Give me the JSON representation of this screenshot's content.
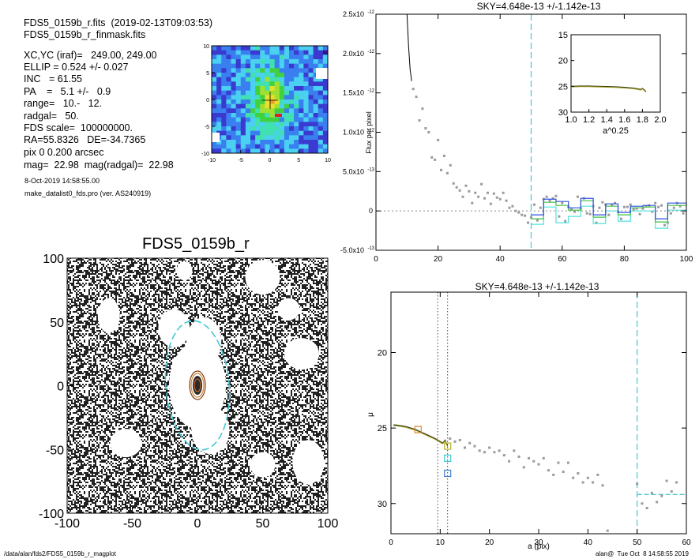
{
  "header": {
    "filename_line": "FDS5_0159b_r.fits  (2019-02-13T09:03:53)",
    "mask_line": "FDS5_0159b_r_finmask.fits",
    "params": [
      "XC,YC (iraf)=   249.00, 249.00",
      "ELLIP = 0.524 +/- 0.027",
      "INC   = 61.55",
      "PA    =   5.1 +/-   0.9",
      "range=   10.-   12.",
      "radgal=   50.",
      "FDS scale=  100000000.",
      "RA=55.8326   DE=-34.7365",
      "pix 0 0.200 arcsec",
      "mag=  22.98  mag(radgal)=  22.98"
    ],
    "date_line": "8-Oct-2019 14:58:55.00",
    "program_line": "make_datalist0_fds.pro (ver. AS240919)"
  },
  "footer": {
    "left": "/data/alan/fds2/FDS5_0159b_r_magplot",
    "right": "alan@  Tue Oct  8 14:58:55 2019"
  },
  "chart_data": [
    {
      "type": "heatmap",
      "name": "galaxy-zoom",
      "xlim": [
        -10,
        10
      ],
      "ylim": [
        -10,
        10
      ],
      "xticks": [
        "-10",
        "-5",
        "0",
        "5",
        "10"
      ],
      "yticks": [
        "-10",
        "-5",
        "0",
        "5",
        "10"
      ]
    },
    {
      "type": "heatmap",
      "name": "galaxy-image",
      "title": "FDS5_0159b_r",
      "xlim": [
        -100,
        100
      ],
      "ylim": [
        -100,
        100
      ],
      "xticks": [
        "-100",
        "-50",
        "0",
        "50",
        "100"
      ],
      "yticks": [
        "-100",
        "-50",
        "0",
        "50",
        "100"
      ],
      "ellipse": {
        "semi_major": 50,
        "ellip": 0.524,
        "pa": 5.1
      },
      "masked_regions": [
        {
          "x": 5,
          "y": 35
        },
        {
          "x": 10,
          "y": -35
        },
        {
          "x": 85,
          "y": -60
        },
        {
          "x": 80,
          "y": 25
        },
        {
          "x": 50,
          "y": 85
        },
        {
          "x": -18,
          "y": 45
        },
        {
          "x": -68,
          "y": 55
        },
        {
          "x": -55,
          "y": -45
        },
        {
          "x": 50,
          "y": -62
        },
        {
          "x": -10,
          "y": 90
        },
        {
          "x": 70,
          "y": 60
        }
      ]
    },
    {
      "type": "scatter",
      "name": "flux-profile",
      "title": "SKY=4.648e-13 +/-1.142e-13",
      "xlabel": "",
      "ylabel": "Flux per pixel",
      "xlim": [
        0,
        100
      ],
      "ylim": [
        -5e-13,
        2.5e-12
      ],
      "xticks": [
        "0",
        "20",
        "40",
        "60",
        "80",
        "100"
      ],
      "yticks": [
        {
          "v": -5e-13,
          "m": "-5.0",
          "e": "-13"
        },
        {
          "v": 0,
          "m": "0",
          "e": ""
        },
        {
          "v": 5e-13,
          "m": "5.0",
          "e": "-13"
        },
        {
          "v": 1e-12,
          "m": "1.0",
          "e": "-12"
        },
        {
          "v": 1.5e-12,
          "m": "1.5",
          "e": "-12"
        },
        {
          "v": 2e-12,
          "m": "2.0",
          "e": "-12"
        },
        {
          "v": 2.5e-12,
          "m": "2.5",
          "e": "-12"
        }
      ],
      "sky_radius": 50,
      "profile_line": [
        [
          10,
          2.5e-12
        ],
        [
          10.5,
          2.1e-12
        ],
        [
          11,
          1.8e-12
        ],
        [
          11.5,
          1.65e-12
        ]
      ],
      "points": [
        [
          12,
          1.55e-12
        ],
        [
          13,
          1.45e-12
        ],
        [
          14,
          1.15e-12
        ],
        [
          15,
          1.3e-12
        ],
        [
          16,
          1.05e-12
        ],
        [
          17,
          1e-12
        ],
        [
          18,
          6.8e-13
        ],
        [
          19,
          6.5e-13
        ],
        [
          20,
          9e-13
        ],
        [
          21,
          5.2e-13
        ],
        [
          22,
          7e-13
        ],
        [
          23,
          4.8e-13
        ],
        [
          24,
          5.8e-13
        ],
        [
          25,
          3.5e-13
        ],
        [
          26,
          3e-13
        ],
        [
          27,
          2.6e-13
        ],
        [
          28,
          1.8e-13
        ],
        [
          29,
          3.2e-13
        ],
        [
          30,
          2.5e-13
        ],
        [
          31,
          1e-13
        ],
        [
          32,
          2.3e-13
        ],
        [
          33,
          1.8e-13
        ],
        [
          34,
          3.4e-13
        ],
        [
          35,
          1.6e-13
        ],
        [
          36,
          2.3e-13
        ],
        [
          37,
          9e-14
        ],
        [
          38,
          2.2e-13
        ],
        [
          39,
          1.7e-13
        ],
        [
          40,
          1.5e-13
        ],
        [
          41,
          2.3e-13
        ],
        [
          42,
          1.3e-13
        ],
        [
          43,
          4e-14
        ],
        [
          44,
          6e-14
        ],
        [
          45,
          0
        ],
        [
          46,
          -2e-14
        ],
        [
          47,
          -5e-14
        ],
        [
          48,
          -6e-14
        ],
        [
          49,
          -1.5e-13
        ],
        [
          50,
          -8e-14
        ],
        [
          51,
          8e-14
        ],
        [
          52,
          -1.2e-13
        ],
        [
          53,
          4e-14
        ],
        [
          54,
          1.5e-13
        ],
        [
          55,
          1.8e-13
        ],
        [
          56,
          1.3e-13
        ],
        [
          57,
          1.6e-13
        ],
        [
          58,
          1.9e-13
        ],
        [
          59,
          -7e-14
        ],
        [
          60,
          1e-13
        ],
        [
          61,
          -1.3e-13
        ],
        [
          62,
          5e-14
        ],
        [
          63,
          2e-14
        ],
        [
          64,
          -1e-14
        ],
        [
          65,
          1.8e-13
        ],
        [
          66,
          3e-14
        ],
        [
          67,
          1.6e-13
        ],
        [
          68,
          -3e-14
        ],
        [
          69,
          -4e-14
        ],
        [
          70,
          6e-14
        ],
        [
          71,
          -1.5e-13
        ],
        [
          72,
          4e-14
        ],
        [
          73,
          1.1e-13
        ],
        [
          74,
          8e-14
        ],
        [
          75,
          -5e-14
        ],
        [
          76,
          8e-14
        ],
        [
          77,
          1e-13
        ],
        [
          78,
          -1e-14
        ],
        [
          79,
          -1e-13
        ],
        [
          80,
          5e-14
        ],
        [
          81,
          5e-14
        ],
        [
          82,
          8e-14
        ],
        [
          83,
          2e-14
        ],
        [
          84,
          3e-14
        ],
        [
          85,
          -4e-14
        ],
        [
          86,
          3e-14
        ],
        [
          87,
          6e-14
        ],
        [
          88,
          7e-14
        ],
        [
          89,
          -1e-14
        ],
        [
          90,
          1e-13
        ],
        [
          91,
          5e-14
        ],
        [
          92,
          7e-14
        ],
        [
          93,
          -1.8e-13
        ],
        [
          94,
          -1.5e-13
        ],
        [
          95,
          -3e-14
        ],
        [
          96,
          4e-14
        ],
        [
          97,
          1e-13
        ],
        [
          98,
          6e-14
        ],
        [
          99,
          -3e-14
        ]
      ],
      "step_blue": [
        [
          50,
          -5e-14
        ],
        [
          54,
          1.5e-13
        ],
        [
          58,
          1.2e-13
        ],
        [
          62,
          4e-14
        ],
        [
          66,
          1.6e-13
        ],
        [
          70,
          -5e-14
        ],
        [
          74,
          9e-14
        ],
        [
          78,
          -2e-14
        ],
        [
          82,
          6e-14
        ],
        [
          86,
          7e-14
        ],
        [
          90,
          -1e-13
        ],
        [
          94,
          1e-13
        ],
        [
          100,
          1e-13
        ]
      ],
      "step_green": [
        [
          50,
          -1e-13
        ],
        [
          54,
          1.1e-13
        ],
        [
          58,
          7e-14
        ],
        [
          62,
          1e-14
        ],
        [
          66,
          1.3e-13
        ],
        [
          70,
          -8e-14
        ],
        [
          74,
          6e-14
        ],
        [
          78,
          -5e-14
        ],
        [
          82,
          4e-14
        ],
        [
          86,
          5e-14
        ],
        [
          90,
          -1.4e-13
        ],
        [
          94,
          7e-14
        ],
        [
          100,
          7e-14
        ]
      ],
      "step_cyan": [
        [
          50,
          -1.7e-13
        ],
        [
          54,
          5e-14
        ],
        [
          58,
          -1.5e-13
        ],
        [
          62,
          -7e-14
        ],
        [
          66,
          6e-14
        ],
        [
          70,
          -1.6e-13
        ],
        [
          74,
          0
        ],
        [
          78,
          -1.3e-13
        ],
        [
          82,
          0
        ],
        [
          86,
          0
        ],
        [
          90,
          -2.2e-13
        ],
        [
          94,
          1e-14
        ],
        [
          100,
          1e-14
        ]
      ],
      "inset": {
        "xlabel": "a^0.25",
        "xlim": [
          1.0,
          2.0
        ],
        "ylim": [
          30,
          15
        ],
        "xticks": [
          "1.0",
          "1.2",
          "1.4",
          "1.6",
          "1.8",
          "2.0"
        ],
        "yticks": [
          "15",
          "20",
          "25",
          "30"
        ],
        "line": [
          [
            1.0,
            25.0
          ],
          [
            1.1,
            24.95
          ],
          [
            1.2,
            24.95
          ],
          [
            1.3,
            25.0
          ],
          [
            1.4,
            25.05
          ],
          [
            1.5,
            25.1
          ],
          [
            1.6,
            25.2
          ],
          [
            1.7,
            25.35
          ],
          [
            1.75,
            25.5
          ],
          [
            1.78,
            25.6
          ],
          [
            1.8,
            25.4
          ],
          [
            1.82,
            25.7
          ],
          [
            1.84,
            26.0
          ]
        ]
      }
    },
    {
      "type": "scatter",
      "name": "surface-brightness",
      "title": "SKY=4.648e-13 +/-1.142e-13",
      "xlabel": "a (pix)",
      "ylabel": "μ",
      "xlim": [
        0,
        60
      ],
      "ylim": [
        32,
        16
      ],
      "xticks": [
        "0",
        "10",
        "20",
        "30",
        "40",
        "50",
        "60"
      ],
      "yticks": [
        "20",
        "25",
        "30"
      ],
      "vlines_dotted": [
        9.5,
        11.5
      ],
      "vline_dashed": 50,
      "profile_line": [
        [
          0.5,
          24.8
        ],
        [
          1,
          24.8
        ],
        [
          2,
          24.85
        ],
        [
          3,
          24.9
        ],
        [
          4,
          25.0
        ],
        [
          5,
          25.1
        ],
        [
          6,
          25.25
        ],
        [
          7,
          25.4
        ],
        [
          8,
          25.55
        ],
        [
          9,
          25.7
        ],
        [
          10,
          25.9
        ],
        [
          10.5,
          26.0
        ],
        [
          11,
          25.8
        ],
        [
          11.5,
          26.2
        ]
      ],
      "squares": [
        {
          "x": 5.5,
          "y": 25.1,
          "color": "#d58a2a"
        },
        {
          "x": 11.5,
          "y": 26.2,
          "color": "#b8b030"
        },
        {
          "x": 11.5,
          "y": 27.0,
          "color": "#44c8d8"
        },
        {
          "x": 11.5,
          "y": 28.0,
          "color": "#3f7fd6"
        }
      ],
      "points": [
        [
          12,
          25.7
        ],
        [
          13,
          25.9
        ],
        [
          14,
          25.8
        ],
        [
          15,
          26.3
        ],
        [
          16,
          26.0
        ],
        [
          17,
          26.2
        ],
        [
          18,
          26.5
        ],
        [
          19,
          26.6
        ],
        [
          20,
          26.3
        ],
        [
          21,
          26.6
        ],
        [
          22,
          26.5
        ],
        [
          23,
          26.8
        ],
        [
          24,
          27.2
        ],
        [
          25,
          26.5
        ],
        [
          26,
          26.9
        ],
        [
          27,
          27.6
        ],
        [
          28,
          27.0
        ],
        [
          29,
          27.2
        ],
        [
          30,
          27.4
        ],
        [
          31,
          27.0
        ],
        [
          32,
          27.8
        ],
        [
          33,
          28.1
        ],
        [
          34,
          27.3
        ],
        [
          35,
          27.9
        ],
        [
          36,
          27.3
        ],
        [
          37,
          28.3
        ],
        [
          38,
          28.0
        ],
        [
          39,
          28.6
        ],
        [
          40,
          28.3
        ],
        [
          41,
          28.6
        ],
        [
          42,
          28.1
        ],
        [
          43,
          28.8
        ],
        [
          44,
          31.8
        ],
        [
          50,
          28.7
        ],
        [
          51,
          30.0
        ],
        [
          52,
          30.3
        ],
        [
          53,
          29.3
        ],
        [
          54,
          29.9
        ],
        [
          55,
          29.5
        ],
        [
          56,
          28.5
        ],
        [
          57,
          29.2
        ],
        [
          58,
          28.6
        ]
      ],
      "sky_line_y": 29.4
    }
  ]
}
